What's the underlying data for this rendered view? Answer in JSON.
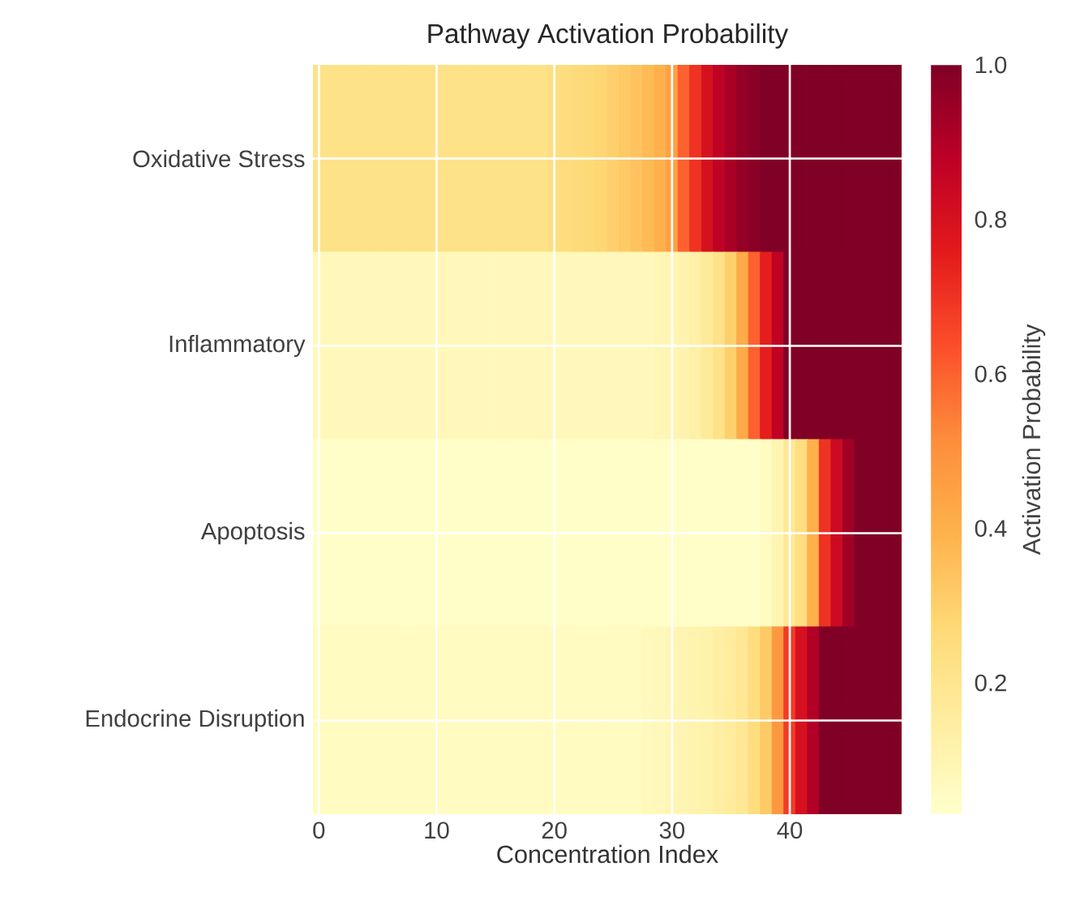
{
  "chart_data": {
    "type": "heatmap",
    "title": "Pathway Activation Probability",
    "xlabel": "Concentration Index",
    "clabel": "Activation Probability",
    "x": [
      0,
      1,
      2,
      3,
      4,
      5,
      6,
      7,
      8,
      9,
      10,
      11,
      12,
      13,
      14,
      15,
      16,
      17,
      18,
      19,
      20,
      21,
      22,
      23,
      24,
      25,
      26,
      27,
      28,
      29,
      30,
      31,
      32,
      33,
      34,
      35,
      36,
      37,
      38,
      39,
      40,
      41,
      42,
      43,
      44,
      45,
      46,
      47,
      48,
      49
    ],
    "xlim": [
      -0.5,
      49.5
    ],
    "xticks": [
      0,
      10,
      20,
      30,
      40
    ],
    "y_categories": [
      "Oxidative Stress",
      "Inflammatory",
      "Apoptosis",
      "Endocrine Disruption"
    ],
    "cells": [
      [
        0.22,
        0.22,
        0.22,
        0.22,
        0.22,
        0.22,
        0.22,
        0.22,
        0.22,
        0.22,
        0.22,
        0.22,
        0.22,
        0.22,
        0.22,
        0.22,
        0.22,
        0.22,
        0.22,
        0.22,
        0.24,
        0.25,
        0.26,
        0.27,
        0.28,
        0.3,
        0.32,
        0.34,
        0.37,
        0.4,
        0.45,
        0.6,
        0.7,
        0.8,
        0.87,
        0.92,
        0.96,
        0.98,
        1,
        1,
        1,
        1,
        1,
        1,
        1,
        1,
        1,
        1,
        1,
        1
      ],
      [
        0.08,
        0.08,
        0.08,
        0.08,
        0.08,
        0.08,
        0.08,
        0.08,
        0.08,
        0.08,
        0.08,
        0.08,
        0.08,
        0.08,
        0.08,
        0.08,
        0.08,
        0.08,
        0.08,
        0.08,
        0.08,
        0.08,
        0.08,
        0.08,
        0.08,
        0.08,
        0.08,
        0.08,
        0.08,
        0.09,
        0.1,
        0.11,
        0.13,
        0.17,
        0.22,
        0.3,
        0.42,
        0.6,
        0.75,
        0.87,
        1,
        1,
        1,
        1,
        1,
        1,
        1,
        1,
        1,
        1
      ],
      [
        0.04,
        0.04,
        0.04,
        0.04,
        0.04,
        0.04,
        0.04,
        0.04,
        0.04,
        0.04,
        0.04,
        0.04,
        0.04,
        0.04,
        0.04,
        0.04,
        0.04,
        0.04,
        0.04,
        0.04,
        0.04,
        0.04,
        0.04,
        0.04,
        0.04,
        0.04,
        0.04,
        0.04,
        0.04,
        0.04,
        0.04,
        0.04,
        0.04,
        0.04,
        0.04,
        0.04,
        0.04,
        0.04,
        0.06,
        0.1,
        0.18,
        0.24,
        0.4,
        0.7,
        0.83,
        0.93,
        1,
        1,
        1,
        1
      ],
      [
        0.06,
        0.06,
        0.06,
        0.06,
        0.06,
        0.06,
        0.06,
        0.06,
        0.06,
        0.06,
        0.06,
        0.06,
        0.06,
        0.06,
        0.06,
        0.06,
        0.06,
        0.06,
        0.06,
        0.06,
        0.06,
        0.06,
        0.06,
        0.06,
        0.06,
        0.06,
        0.06,
        0.06,
        0.07,
        0.08,
        0.09,
        0.1,
        0.11,
        0.12,
        0.14,
        0.16,
        0.19,
        0.25,
        0.32,
        0.48,
        0.68,
        0.8,
        0.9,
        1,
        1,
        1,
        1,
        1,
        1,
        1
      ]
    ],
    "clim": [
      0.03,
      1
    ],
    "cticks": [
      0.2,
      0.4,
      0.6,
      0.8,
      {
        "value": 1,
        "label": "1.0"
      }
    ],
    "grid": true
  }
}
